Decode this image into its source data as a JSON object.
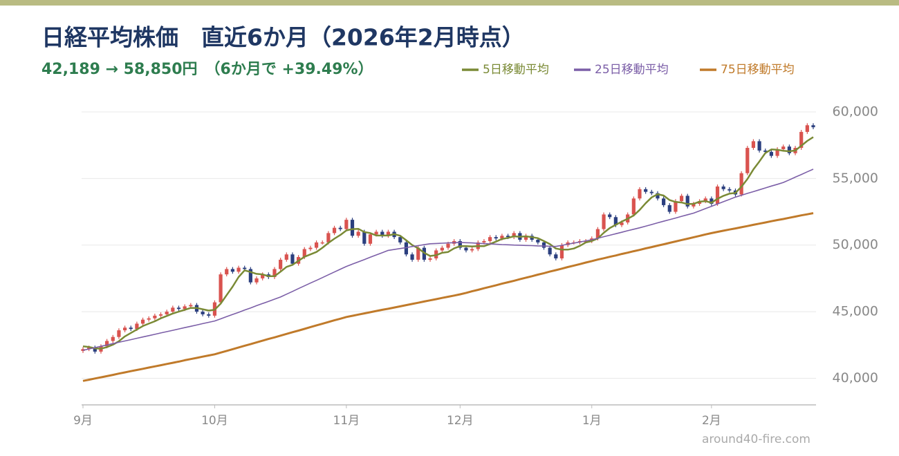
{
  "chart_data": {
    "type": "candlestick",
    "title": "日経平均株価　直近6か月（2026年2月時点）",
    "subtitle": "42,189 → 58,850円　（6か月で +39.49%）",
    "watermark": "around40-fire.com",
    "categories": [
      "9月",
      null,
      null,
      null,
      null,
      null,
      null,
      null,
      null,
      null,
      null,
      null,
      null,
      null,
      null,
      null,
      null,
      null,
      null,
      null,
      null,
      null,
      "10月",
      null,
      null,
      null,
      null,
      null,
      null,
      null,
      null,
      null,
      null,
      null,
      null,
      null,
      null,
      null,
      null,
      null,
      null,
      null,
      null,
      null,
      "11月",
      null,
      null,
      null,
      null,
      null,
      null,
      null,
      null,
      null,
      null,
      null,
      null,
      null,
      null,
      null,
      null,
      null,
      null,
      "12月",
      null,
      null,
      null,
      null,
      null,
      null,
      null,
      null,
      null,
      null,
      null,
      null,
      null,
      null,
      null,
      null,
      null,
      null,
      null,
      null,
      null,
      "1月",
      null,
      null,
      null,
      null,
      null,
      null,
      null,
      null,
      null,
      null,
      null,
      null,
      null,
      null,
      null,
      null,
      null,
      null,
      null,
      "2月",
      null,
      null,
      null,
      null,
      null,
      null,
      null,
      null,
      null,
      null,
      null,
      null,
      null,
      null,
      null,
      null,
      null
    ],
    "open": [
      42050,
      42189,
      42300,
      42000,
      42400,
      42800,
      43100,
      43600,
      43800,
      43700,
      44100,
      44400,
      44500,
      44700,
      44800,
      45000,
      45300,
      45200,
      45400,
      45500,
      45000,
      44800,
      44700,
      45700,
      47800,
      48200,
      48000,
      48300,
      48200,
      47200,
      47500,
      47800,
      47600,
      48200,
      48900,
      49300,
      48600,
      49100,
      49700,
      49800,
      50200,
      50200,
      50900,
      51300,
      51200,
      51900,
      50700,
      51000,
      50100,
      50800,
      51000,
      50700,
      51000,
      50600,
      50200,
      49300,
      48900,
      49800,
      48900,
      49000,
      49600,
      49800,
      50100,
      50300,
      49800,
      49600,
      49700,
      50200,
      50300,
      50600,
      50500,
      50700,
      50600,
      50900,
      50400,
      50700,
      50400,
      50200,
      49800,
      49300,
      49000,
      50000,
      50200,
      50200,
      50300,
      50300,
      50500,
      51200,
      52300,
      52100,
      51500,
      51700,
      52300,
      53500,
      54200,
      54000,
      53900,
      53500,
      53000,
      52500,
      53300,
      53700,
      52900,
      53100,
      53300,
      53500,
      53100,
      54400,
      54200,
      54100,
      53800,
      55400,
      57300,
      57800,
      57100,
      57000,
      56700,
      57200,
      57400,
      56900,
      57300,
      58500,
      59000
    ],
    "high": [
      42339,
      42450,
      42450,
      42550,
      42950,
      43250,
      43750,
      43950,
      43950,
      44250,
      44550,
      44650,
      44850,
      44950,
      45150,
      45450,
      45450,
      45550,
      45650,
      45650,
      45150,
      44950,
      45850,
      47950,
      48350,
      48350,
      48450,
      48450,
      48350,
      47650,
      47950,
      47950,
      48350,
      49050,
      49450,
      49450,
      49250,
      49850,
      49950,
      50350,
      50350,
      51050,
      51450,
      51450,
      52050,
      52050,
      51150,
      51150,
      50950,
      51150,
      51150,
      51150,
      51150,
      50750,
      50350,
      49450,
      49950,
      49950,
      49150,
      49750,
      49950,
      50250,
      50450,
      50450,
      49950,
      49850,
      50350,
      50450,
      50750,
      50750,
      50850,
      50850,
      51050,
      51050,
      50850,
      50850,
      50550,
      50350,
      49950,
      49450,
      50150,
      50350,
      50350,
      50450,
      50450,
      50650,
      51350,
      52450,
      52450,
      52250,
      51850,
      52450,
      53650,
      54350,
      54350,
      54150,
      54050,
      53650,
      53150,
      53450,
      53850,
      53850,
      53250,
      53450,
      53650,
      53650,
      54550,
      54550,
      54350,
      54250,
      55550,
      57450,
      57950,
      57950,
      57250,
      57150,
      57350,
      57550,
      57550,
      57450,
      58650,
      59150,
      59150
    ],
    "low": [
      41900,
      42039,
      41850,
      41850,
      42250,
      42650,
      42950,
      43450,
      43550,
      43550,
      43950,
      44250,
      44350,
      44550,
      44650,
      44850,
      45050,
      45050,
      45250,
      44850,
      44650,
      44550,
      44550,
      45550,
      47650,
      47850,
      47850,
      48050,
      47050,
      47050,
      47350,
      47450,
      47450,
      48050,
      48750,
      48450,
      48450,
      48950,
      49550,
      49650,
      50050,
      50050,
      50750,
      51050,
      51050,
      50550,
      50550,
      49950,
      49950,
      50650,
      50550,
      50550,
      50450,
      50050,
      49150,
      48750,
      48750,
      48750,
      48750,
      48850,
      49450,
      49650,
      49950,
      49650,
      49450,
      49450,
      49550,
      50050,
      50150,
      50350,
      50350,
      50450,
      50450,
      50250,
      50250,
      50250,
      50050,
      49650,
      49150,
      48850,
      48850,
      49850,
      50050,
      50050,
      50150,
      50150,
      50350,
      51050,
      51950,
      51350,
      51350,
      51550,
      52150,
      53350,
      53850,
      53750,
      53350,
      52850,
      52350,
      52350,
      53150,
      52750,
      52750,
      52950,
      53150,
      52950,
      52950,
      54050,
      53950,
      53650,
      53650,
      55250,
      57150,
      56950,
      56850,
      56550,
      56550,
      57050,
      56750,
      56750,
      57150,
      58350,
      58700
    ],
    "close": [
      42189,
      42300,
      42000,
      42400,
      42800,
      43100,
      43600,
      43800,
      43700,
      44100,
      44400,
      44500,
      44700,
      44800,
      45000,
      45300,
      45200,
      45400,
      45500,
      45000,
      44800,
      44700,
      45700,
      47800,
      48200,
      48000,
      48300,
      48200,
      47200,
      47500,
      47800,
      47600,
      48200,
      48900,
      49300,
      48600,
      49100,
      49700,
      49800,
      50200,
      50200,
      50900,
      51300,
      51200,
      51900,
      50700,
      51000,
      50100,
      50800,
      51000,
      50700,
      51000,
      50600,
      50200,
      49300,
      48900,
      49800,
      48900,
      49000,
      49600,
      49800,
      50100,
      50300,
      49800,
      49600,
      49700,
      50200,
      50300,
      50600,
      50500,
      50700,
      50600,
      50900,
      50400,
      50700,
      50400,
      50200,
      49800,
      49300,
      49000,
      50000,
      50200,
      50200,
      50300,
      50300,
      50500,
      51200,
      52300,
      52100,
      51500,
      51700,
      52300,
      53500,
      54200,
      54000,
      53900,
      53500,
      53000,
      52500,
      53300,
      53700,
      52900,
      53100,
      53300,
      53500,
      53100,
      54400,
      54200,
      54100,
      53800,
      55400,
      57300,
      57800,
      57100,
      57000,
      56700,
      57200,
      57400,
      56900,
      57300,
      58500,
      59000,
      58850
    ],
    "up_color": "#d9534f",
    "down_color": "#2b3f7f",
    "series": [
      {
        "name": "5日移動平均",
        "color": "#7a8a35",
        "values": [
          42400,
          42350,
          42250,
          42220,
          42340,
          42520,
          42780,
          43140,
          43400,
          43660,
          43920,
          44100,
          44280,
          44500,
          44680,
          44860,
          45000,
          45140,
          45280,
          45280,
          45180,
          45080,
          45140,
          45600,
          46240,
          46880,
          47600,
          48100,
          47980,
          47840,
          47800,
          47660,
          47660,
          48000,
          48360,
          48520,
          48820,
          49120,
          49300,
          49480,
          49800,
          50160,
          50480,
          50760,
          51100,
          51200,
          51220,
          50980,
          50900,
          50720,
          50720,
          50720,
          50820,
          50700,
          50360,
          50000,
          49760,
          49420,
          49180,
          49240,
          49420,
          49480,
          49760,
          49920,
          49920,
          49900,
          49920,
          49920,
          50080,
          50260,
          50460,
          50540,
          50660,
          50620,
          50660,
          50600,
          50520,
          50300,
          50080,
          49740,
          49660,
          49660,
          49740,
          49940,
          50200,
          50300,
          50500,
          50920,
          51280,
          51520,
          51760,
          51980,
          52220,
          52640,
          53140,
          53580,
          53820,
          53720,
          53380,
          53240,
          53200,
          53080,
          53100,
          53260,
          53300,
          53180,
          53480,
          53700,
          53860,
          53920,
          54380,
          54960,
          55680,
          56280,
          56920,
          57180,
          57160,
          57080,
          57040,
          57100,
          57460,
          57820,
          58110
        ]
      },
      {
        "name": "25日移動平均",
        "color": "#7b5ea7",
        "values": [
          42100,
          42200,
          42300,
          42400,
          42500,
          42600,
          42700,
          42800,
          42900,
          43000,
          43100,
          43200,
          43300,
          43400,
          43500,
          43600,
          43700,
          43800,
          43900,
          44000,
          44100,
          44200,
          44300,
          44460,
          44630,
          44790,
          44950,
          45120,
          45280,
          45450,
          45610,
          45770,
          45940,
          46100,
          46310,
          46520,
          46730,
          46940,
          47150,
          47350,
          47560,
          47770,
          47980,
          48190,
          48400,
          48570,
          48740,
          48910,
          49090,
          49260,
          49430,
          49600,
          49670,
          49740,
          49810,
          49890,
          49960,
          50030,
          50100,
          50120,
          50140,
          50160,
          50180,
          50200,
          50180,
          50160,
          50130,
          50110,
          50090,
          50070,
          50040,
          50020,
          50000,
          49990,
          49970,
          49960,
          49940,
          49930,
          49910,
          49900,
          49980,
          50070,
          50150,
          50230,
          50320,
          50400,
          50510,
          50630,
          50740,
          50850,
          50960,
          51080,
          51190,
          51300,
          51420,
          51540,
          51670,
          51790,
          51910,
          52030,
          52160,
          52280,
          52400,
          52570,
          52740,
          52910,
          53090,
          53260,
          53430,
          53600,
          53740,
          53880,
          54010,
          54150,
          54290,
          54430,
          54560,
          54700,
          54900,
          55100,
          55300,
          55500,
          55700
        ]
      },
      {
        "name": "75日移動平均",
        "color": "#c07a2a",
        "values": [
          39800,
          39890,
          39980,
          40070,
          40160,
          40250,
          40350,
          40440,
          40530,
          40620,
          40710,
          40800,
          40890,
          40980,
          41070,
          41160,
          41250,
          41350,
          41440,
          41530,
          41620,
          41710,
          41800,
          41930,
          42050,
          42180,
          42310,
          42440,
          42560,
          42690,
          42820,
          42950,
          43070,
          43200,
          43330,
          43460,
          43580,
          43710,
          43840,
          43970,
          44090,
          44220,
          44350,
          44470,
          44600,
          44690,
          44780,
          44870,
          44960,
          45050,
          45140,
          45220,
          45310,
          45400,
          45490,
          45580,
          45670,
          45760,
          45850,
          45940,
          46030,
          46120,
          46210,
          46300,
          46410,
          46530,
          46640,
          46760,
          46870,
          46980,
          47100,
          47210,
          47320,
          47440,
          47550,
          47660,
          47780,
          47890,
          48010,
          48120,
          48230,
          48350,
          48460,
          48570,
          48690,
          48800,
          48910,
          49010,
          49120,
          49220,
          49330,
          49430,
          49540,
          49640,
          49750,
          49850,
          49960,
          50060,
          50170,
          50270,
          50380,
          50480,
          50590,
          50690,
          50800,
          50900,
          50990,
          51080,
          51170,
          51250,
          51340,
          51430,
          51520,
          51610,
          51700,
          51790,
          51880,
          51960,
          52050,
          52140,
          52230,
          52310,
          52400
        ]
      }
    ],
    "ylim": [
      38000,
      60000
    ],
    "yticks": [
      {
        "value": 40000,
        "label": "40,000"
      },
      {
        "value": 45000,
        "label": "45,000"
      },
      {
        "value": 50000,
        "label": "50,000"
      },
      {
        "value": 55000,
        "label": "55,000"
      },
      {
        "value": 60000,
        "label": "60,000"
      }
    ],
    "grid": true
  }
}
